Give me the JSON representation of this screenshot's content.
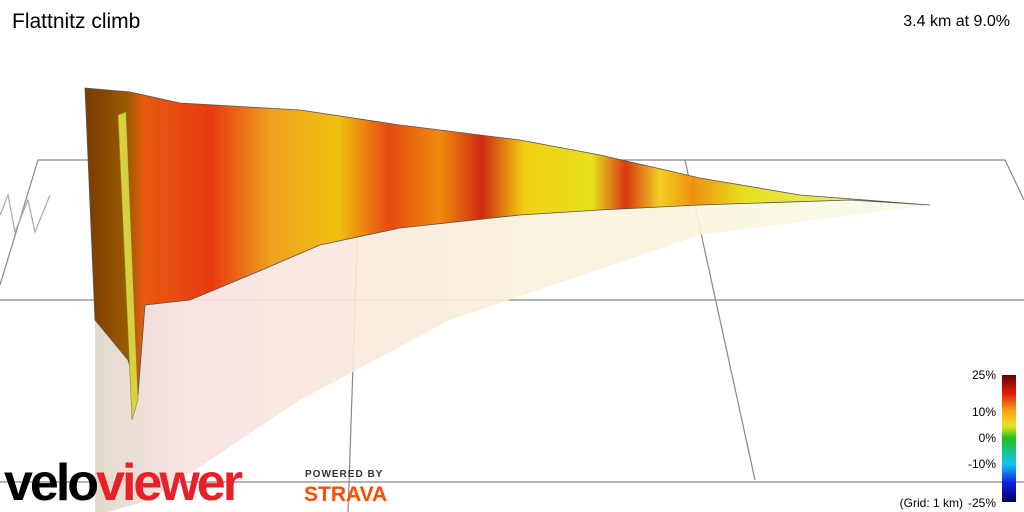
{
  "header": {
    "title": "Flattnitz climb",
    "summary": "3.4 km at 9.0%"
  },
  "legend": {
    "labels": [
      "25%",
      "10%",
      "0%",
      "-10%",
      "-25%"
    ],
    "grid_note": "(Grid: 1 km)"
  },
  "branding": {
    "velo": "velo",
    "viewer": "viewer",
    "powered_by": "POWERED BY",
    "strava": "STRAVA"
  }
}
